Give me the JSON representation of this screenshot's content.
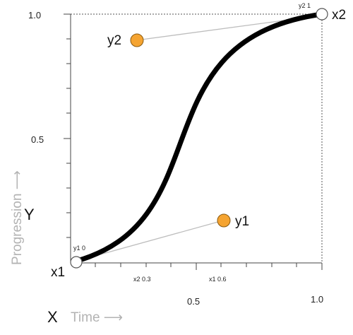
{
  "diagram": {
    "axis_ticks": {
      "y_top": "1.0",
      "y_mid": "0.5",
      "x_mid": "0.5",
      "x_right": "1.0"
    },
    "x_axis": {
      "letter": "X",
      "title": "Time ⟶"
    },
    "y_axis": {
      "letter": "Y",
      "title": "Progression ⟶"
    },
    "start_point": {
      "label": "x1",
      "value_label": "y1 0"
    },
    "end_point": {
      "label": "x2",
      "value_label": "y2 1"
    },
    "control_point_1": {
      "label": "y1",
      "x_value_label": "x1 0.6",
      "x": 0.6,
      "y": 0.1
    },
    "control_point_2": {
      "label": "y2",
      "x_value_label": "x2 0.3",
      "x": 0.3,
      "y": 0.9
    },
    "colors": {
      "curve": "#000000",
      "control_fill": "#f5a431",
      "control_stroke": "#8a5a10",
      "endpoint_fill": "#ffffff",
      "handle_line": "#bdbdbd",
      "axis_title": "#b3b3b3"
    }
  }
}
